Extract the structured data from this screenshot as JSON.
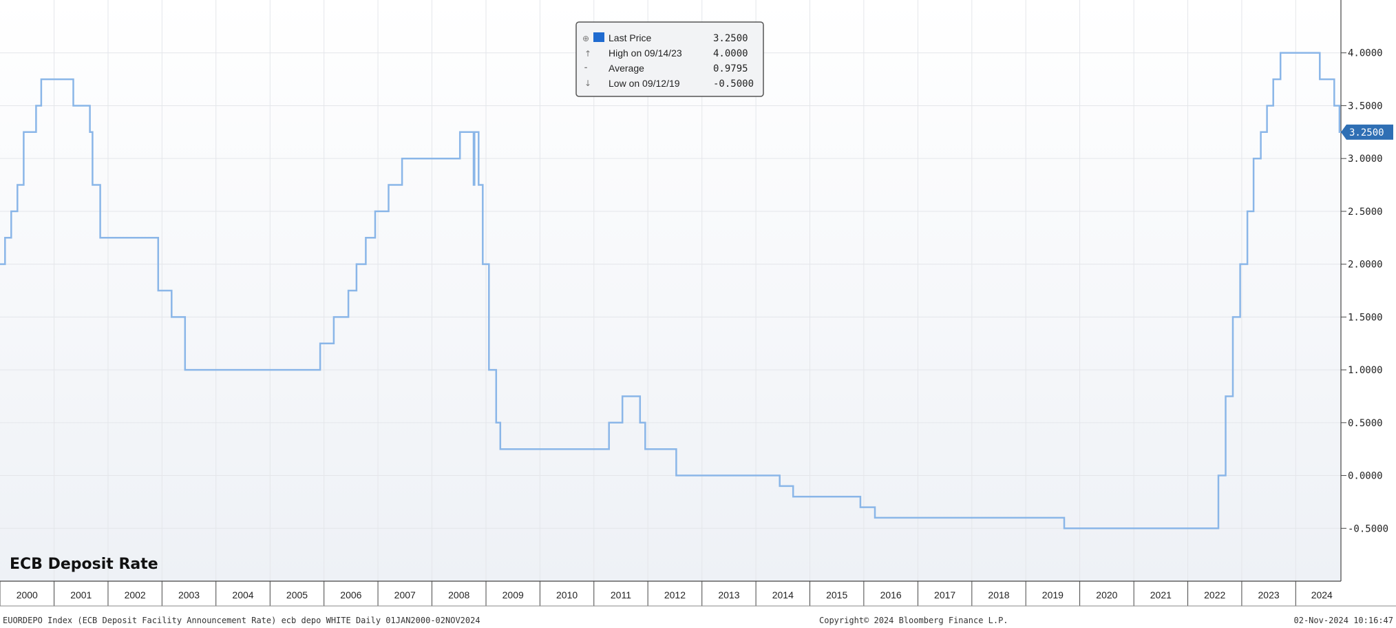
{
  "chart_data": {
    "type": "line",
    "title": "ECB Deposit Rate",
    "x_range": [
      "2000-01-01",
      "2024-11-02"
    ],
    "ylim": [
      -1.0,
      4.5
    ],
    "yticks": [
      -0.5,
      0.0,
      0.5,
      1.0,
      1.5,
      2.0,
      2.5,
      3.0,
      3.5,
      4.0
    ],
    "ytick_labels": [
      "-0.5000",
      "0.0000",
      "0.5000",
      "1.0000",
      "1.5000",
      "2.0000",
      "2.5000",
      "3.0000",
      "3.5000",
      "4.0000"
    ],
    "xtick_labels": [
      "2000",
      "2001",
      "2002",
      "2003",
      "2004",
      "2005",
      "2006",
      "2007",
      "2008",
      "2009",
      "2010",
      "2011",
      "2012",
      "2013",
      "2014",
      "2015",
      "2016",
      "2017",
      "2018",
      "2019",
      "2020",
      "2021",
      "2022",
      "2023",
      "2024"
    ],
    "grid": true,
    "line_color": "#8ab6e8",
    "series": [
      {
        "x": [
          "2000-01-01",
          "2000-02-04",
          "2000-03-17",
          "2000-04-28",
          "2000-06-09",
          "2000-09-01",
          "2000-10-06",
          "2001-05-11",
          "2001-08-31",
          "2001-09-18",
          "2001-11-09",
          "2002-12-06",
          "2003-03-07",
          "2003-06-06",
          "2005-12-06",
          "2006-03-08",
          "2006-06-15",
          "2006-08-09",
          "2006-10-11",
          "2006-12-13",
          "2007-03-14",
          "2007-06-13",
          "2008-07-09",
          "2008-10-09",
          "2008-10-15",
          "2008-11-12",
          "2008-12-10",
          "2009-01-21",
          "2009-03-11",
          "2009-04-08",
          "2009-05-13",
          "2011-04-13",
          "2011-07-13",
          "2011-11-09",
          "2011-12-14",
          "2012-07-11",
          "2014-06-11",
          "2014-09-10",
          "2015-12-09",
          "2016-03-16",
          "2019-09-18",
          "2022-07-27",
          "2022-09-14",
          "2022-11-02",
          "2022-12-21",
          "2023-02-08",
          "2023-03-22",
          "2023-05-10",
          "2023-06-21",
          "2023-08-02",
          "2023-09-20",
          "2024-06-12",
          "2024-09-18",
          "2024-10-23",
          "2024-11-02"
        ],
        "values": [
          2.0,
          2.25,
          2.5,
          2.75,
          3.25,
          3.5,
          3.75,
          3.5,
          3.25,
          2.75,
          2.25,
          1.75,
          1.5,
          1.0,
          1.25,
          1.5,
          1.75,
          2.0,
          2.25,
          2.5,
          2.75,
          3.0,
          3.25,
          2.75,
          3.25,
          2.75,
          2.0,
          1.0,
          0.5,
          0.25,
          0.25,
          0.5,
          0.75,
          0.5,
          0.25,
          0.0,
          -0.1,
          -0.2,
          -0.3,
          -0.4,
          -0.5,
          0.0,
          0.75,
          1.5,
          2.0,
          2.5,
          3.0,
          3.25,
          3.5,
          3.75,
          4.0,
          3.75,
          3.5,
          3.25,
          3.25
        ]
      }
    ],
    "last_value_label": "3.2500",
    "legend": {
      "position": "top-center",
      "entries": [
        {
          "label": "Last Price",
          "value": "3.2500"
        },
        {
          "label": "High on 09/14/23",
          "value": "4.0000"
        },
        {
          "label": "Average",
          "value": "0.9795"
        },
        {
          "label": "Low on 09/12/19",
          "value": "-0.5000"
        }
      ]
    }
  },
  "footer": {
    "left": "EUORDEPO Index (ECB Deposit Facility Announcement Rate) ecb depo WHITE  Daily 01JAN2000-02NOV2024",
    "center": "Copyright© 2024 Bloomberg Finance L.P.",
    "right": "02-Nov-2024 10:16:47"
  }
}
